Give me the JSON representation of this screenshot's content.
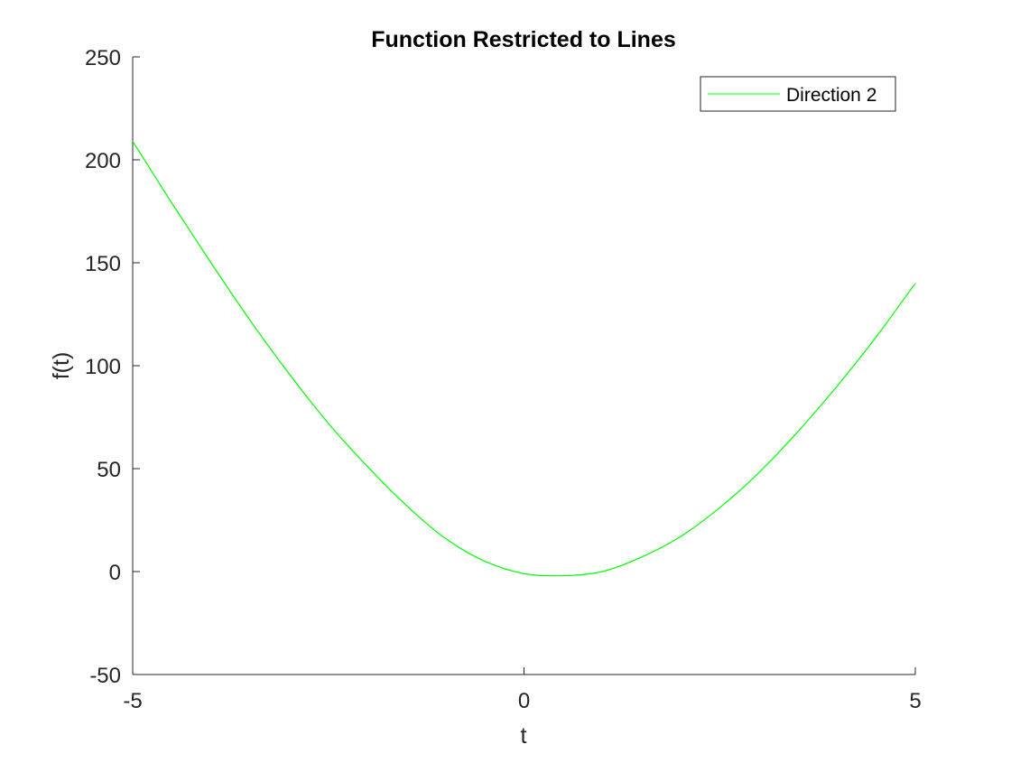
{
  "chart_data": {
    "type": "line",
    "title": "Function Restricted to Lines",
    "xlabel": "t",
    "ylabel": "f(t)",
    "xlim": [
      -5,
      5
    ],
    "ylim": [
      -50,
      250
    ],
    "xticks": [
      -5,
      0,
      5
    ],
    "yticks": [
      -50,
      0,
      50,
      100,
      150,
      200,
      250
    ],
    "xtick_labels": [
      "-5",
      "0",
      "5"
    ],
    "ytick_labels": [
      "-50",
      "0",
      "50",
      "100",
      "150",
      "200",
      "250"
    ],
    "grid": false,
    "legend": {
      "position": "top-right",
      "entries": [
        "Direction 2"
      ]
    },
    "series": [
      {
        "name": "Direction 2",
        "color": "#00ff00",
        "x": [
          -5,
          -4.5,
          -4,
          -3.5,
          -3,
          -2.5,
          -2,
          -1.5,
          -1,
          -0.5,
          0,
          0.5,
          1,
          1.5,
          2,
          2.5,
          3,
          3.5,
          4,
          4.5,
          5
        ],
        "y": [
          209,
          179,
          150,
          122,
          96,
          72,
          51,
          32,
          16,
          5,
          -1,
          -2,
          0,
          7,
          17,
          31,
          48,
          68,
          90,
          114,
          140
        ]
      }
    ]
  }
}
